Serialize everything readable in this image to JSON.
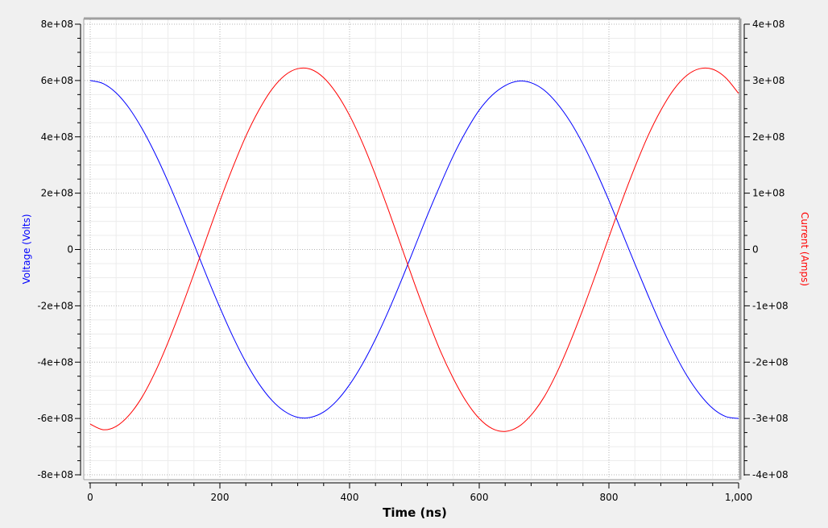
{
  "chart_data": {
    "type": "line",
    "title": "",
    "xlabel": "Time (ns)",
    "ylabel_left": "Voltage (Volts)",
    "ylabel_right": "Current (Amps)",
    "xlim": [
      0,
      1000
    ],
    "ylim_left": [
      -800000000,
      800000000
    ],
    "ylim_right": [
      -400000000,
      400000000
    ],
    "x_ticks": [
      {
        "value": 0,
        "label": "0"
      },
      {
        "value": 200,
        "label": "200"
      },
      {
        "value": 400,
        "label": "400"
      },
      {
        "value": 600,
        "label": "600"
      },
      {
        "value": 800,
        "label": "800"
      },
      {
        "value": 1000,
        "label": "1,000"
      }
    ],
    "y_left_ticks": [
      {
        "value": 800000000,
        "label": "8e+08"
      },
      {
        "value": 600000000,
        "label": "6e+08"
      },
      {
        "value": 400000000,
        "label": "4e+08"
      },
      {
        "value": 200000000,
        "label": "2e+08"
      },
      {
        "value": 0,
        "label": "0"
      },
      {
        "value": -200000000,
        "label": "-2e+08"
      },
      {
        "value": -400000000,
        "label": "-4e+08"
      },
      {
        "value": -600000000,
        "label": "-6e+08"
      },
      {
        "value": -800000000,
        "label": "-8e+08"
      }
    ],
    "y_right_ticks": [
      {
        "value": 400000000,
        "label": "4e+08"
      },
      {
        "value": 300000000,
        "label": "3e+08"
      },
      {
        "value": 200000000,
        "label": "2e+08"
      },
      {
        "value": 100000000,
        "label": "1e+08"
      },
      {
        "value": 0,
        "label": "0"
      },
      {
        "value": -100000000,
        "label": "-1e+08"
      },
      {
        "value": -200000000,
        "label": "-2e+08"
      },
      {
        "value": -300000000,
        "label": "-3e+08"
      },
      {
        "value": -400000000,
        "label": "-4e+08"
      }
    ],
    "grid": true,
    "series": [
      {
        "axis": "left",
        "color": "#0000ff",
        "x": [
          0,
          20,
          40,
          60,
          80,
          100,
          120,
          140,
          160,
          180,
          200,
          220,
          240,
          260,
          280,
          300,
          320,
          340,
          360,
          380,
          400,
          420,
          440,
          460,
          480,
          500,
          520,
          540,
          560,
          580,
          600,
          620,
          640,
          660,
          680,
          700,
          720,
          740,
          760,
          780,
          800,
          820,
          840,
          860,
          880,
          900,
          920,
          940,
          960,
          980,
          1000
        ],
        "values": [
          600000000,
          589000000,
          556000000,
          502000000,
          429000000,
          341000000,
          241000000,
          132000000,
          19000000,
          -96000000,
          -206000000,
          -309000000,
          -400000000,
          -476000000,
          -535000000,
          -575000000,
          -596000000,
          -596000000,
          -577000000,
          -538000000,
          -480000000,
          -406000000,
          -318000000,
          -218000000,
          -109000000,
          6000000,
          121000000,
          230000000,
          333000000,
          421000000,
          495000000,
          548000000,
          582000000,
          598000000,
          592000000,
          566000000,
          519000000,
          455000000,
          374000000,
          279000000,
          174000000,
          62000000,
          -51000000,
          -161000000,
          -267000000,
          -363000000,
          -447000000,
          -514000000,
          -564000000,
          -593000000,
          -600000000
        ]
      },
      {
        "axis": "right",
        "color": "#ff0000",
        "x": [
          0,
          20,
          40,
          60,
          80,
          100,
          120,
          140,
          160,
          180,
          200,
          220,
          240,
          260,
          280,
          300,
          320,
          340,
          360,
          380,
          400,
          420,
          440,
          460,
          480,
          500,
          520,
          540,
          560,
          580,
          600,
          620,
          640,
          660,
          680,
          700,
          720,
          740,
          760,
          780,
          800,
          820,
          840,
          860,
          880,
          900,
          920,
          940,
          960,
          980,
          1000
        ],
        "values": [
          -310000000,
          -320000000,
          -314000000,
          -294000000,
          -262000000,
          -218000000,
          -165000000,
          -106000000,
          -43000000,
          22000000,
          86000000,
          146000000,
          201000000,
          247000000,
          284000000,
          309000000,
          321000000,
          320000000,
          305000000,
          277000000,
          238000000,
          189000000,
          132000000,
          70000000,
          5000000,
          -60000000,
          -122000000,
          -180000000,
          -229000000,
          -270000000,
          -300000000,
          -318000000,
          -323000000,
          -315000000,
          -294000000,
          -262000000,
          -218000000,
          -165000000,
          -106000000,
          -43000000,
          22000000,
          86000000,
          146000000,
          201000000,
          247000000,
          284000000,
          309000000,
          321000000,
          320000000,
          305000000,
          277000000
        ]
      }
    ]
  }
}
